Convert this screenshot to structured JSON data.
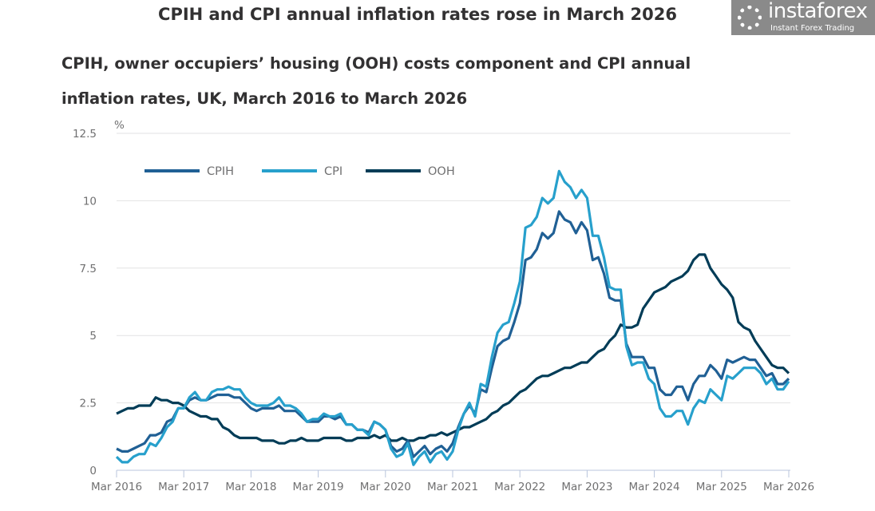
{
  "chart_data": {
    "type": "line",
    "title": "CPIH and CPI annual inflation rates rose in March 2026",
    "subtitle": "CPIH, owner occupiers’ housing (OOH) costs component and CPI annual inflation rates, UK, March 2016 to March 2026",
    "ylabel": "%",
    "ylim": [
      0,
      12.5
    ],
    "yticks": [
      "0",
      "2.5",
      "5",
      "7.5",
      "10",
      "12.5"
    ],
    "ytick_values": [
      0,
      2.5,
      5,
      7.5,
      10,
      12.5
    ],
    "xticks": [
      "Mar 2016",
      "Mar 2017",
      "Mar 2018",
      "Mar 2019",
      "Mar 2020",
      "Mar 2021",
      "Mar 2022",
      "Mar 2023",
      "Mar 2024",
      "Mar 2025",
      "Mar 2026"
    ],
    "x_start": "Mar 2016",
    "x_frequency": "monthly",
    "grid": true,
    "legend_position": "top-left",
    "series": [
      {
        "name": "CPIH",
        "color": "#206095",
        "values": [
          0.8,
          0.7,
          0.7,
          0.8,
          0.9,
          1.0,
          1.3,
          1.3,
          1.4,
          1.8,
          1.9,
          2.3,
          2.3,
          2.6,
          2.7,
          2.6,
          2.6,
          2.7,
          2.8,
          2.8,
          2.8,
          2.7,
          2.7,
          2.5,
          2.3,
          2.2,
          2.3,
          2.3,
          2.3,
          2.4,
          2.2,
          2.2,
          2.2,
          2.0,
          1.8,
          1.8,
          1.8,
          2.0,
          2.0,
          1.9,
          2.0,
          1.7,
          1.7,
          1.5,
          1.5,
          1.4,
          1.8,
          1.7,
          1.5,
          0.9,
          0.7,
          0.8,
          1.1,
          0.5,
          0.7,
          0.9,
          0.6,
          0.8,
          0.9,
          0.7,
          1.0,
          1.6,
          2.1,
          2.4,
          2.1,
          3.0,
          2.9,
          3.8,
          4.6,
          4.8,
          4.9,
          5.5,
          6.2,
          7.8,
          7.9,
          8.2,
          8.8,
          8.6,
          8.8,
          9.6,
          9.3,
          9.2,
          8.8,
          9.2,
          8.9,
          7.8,
          7.9,
          7.3,
          6.4,
          6.3,
          6.3,
          4.7,
          4.2,
          4.2,
          4.2,
          3.8,
          3.8,
          3.0,
          2.8,
          2.8,
          3.1,
          3.1,
          2.6,
          3.2,
          3.5,
          3.5,
          3.9,
          3.7,
          3.4,
          4.1,
          4.0,
          4.1,
          4.2,
          4.1,
          4.1,
          3.8,
          3.5,
          3.6,
          3.2,
          3.2,
          3.4
        ]
      },
      {
        "name": "CPI",
        "color": "#27a0cc",
        "values": [
          0.5,
          0.3,
          0.3,
          0.5,
          0.6,
          0.6,
          1.0,
          0.9,
          1.2,
          1.6,
          1.8,
          2.3,
          2.3,
          2.7,
          2.9,
          2.6,
          2.6,
          2.9,
          3.0,
          3.0,
          3.1,
          3.0,
          3.0,
          2.7,
          2.5,
          2.4,
          2.4,
          2.4,
          2.5,
          2.7,
          2.4,
          2.4,
          2.3,
          2.1,
          1.8,
          1.9,
          1.9,
          2.1,
          2.0,
          2.0,
          2.1,
          1.7,
          1.7,
          1.5,
          1.5,
          1.3,
          1.8,
          1.7,
          1.5,
          0.8,
          0.5,
          0.6,
          1.0,
          0.2,
          0.5,
          0.7,
          0.3,
          0.6,
          0.7,
          0.4,
          0.7,
          1.5,
          2.1,
          2.5,
          2.0,
          3.2,
          3.1,
          4.2,
          5.1,
          5.4,
          5.5,
          6.2,
          7.0,
          9.0,
          9.1,
          9.4,
          10.1,
          9.9,
          10.1,
          11.1,
          10.7,
          10.5,
          10.1,
          10.4,
          10.1,
          8.7,
          8.7,
          7.9,
          6.8,
          6.7,
          6.7,
          4.6,
          3.9,
          4.0,
          4.0,
          3.4,
          3.2,
          2.3,
          2.0,
          2.0,
          2.2,
          2.2,
          1.7,
          2.3,
          2.6,
          2.5,
          3.0,
          2.8,
          2.6,
          3.5,
          3.4,
          3.6,
          3.8,
          3.8,
          3.8,
          3.6,
          3.2,
          3.4,
          3.0,
          3.0,
          3.3
        ]
      },
      {
        "name": "OOH",
        "color": "#003c57",
        "values": [
          2.1,
          2.2,
          2.3,
          2.3,
          2.4,
          2.4,
          2.4,
          2.7,
          2.6,
          2.6,
          2.5,
          2.5,
          2.4,
          2.2,
          2.1,
          2.0,
          2.0,
          1.9,
          1.9,
          1.6,
          1.5,
          1.3,
          1.2,
          1.2,
          1.2,
          1.2,
          1.1,
          1.1,
          1.1,
          1.0,
          1.0,
          1.1,
          1.1,
          1.2,
          1.1,
          1.1,
          1.1,
          1.2,
          1.2,
          1.2,
          1.2,
          1.1,
          1.1,
          1.2,
          1.2,
          1.2,
          1.3,
          1.2,
          1.3,
          1.1,
          1.1,
          1.2,
          1.1,
          1.1,
          1.2,
          1.2,
          1.3,
          1.3,
          1.4,
          1.3,
          1.4,
          1.5,
          1.6,
          1.6,
          1.7,
          1.8,
          1.9,
          2.1,
          2.2,
          2.4,
          2.5,
          2.7,
          2.9,
          3.0,
          3.2,
          3.4,
          3.5,
          3.5,
          3.6,
          3.7,
          3.8,
          3.8,
          3.9,
          4.0,
          4.0,
          4.2,
          4.4,
          4.5,
          4.8,
          5.0,
          5.4,
          5.3,
          5.3,
          5.4,
          6.0,
          6.3,
          6.6,
          6.7,
          6.8,
          7.0,
          7.1,
          7.2,
          7.4,
          7.8,
          8.0,
          8.0,
          7.5,
          7.2,
          6.9,
          6.7,
          6.4,
          5.5,
          5.3,
          5.2,
          4.8,
          4.5,
          4.2,
          3.9,
          3.8,
          3.8,
          3.6
        ]
      }
    ]
  },
  "watermark": {
    "brand": "instaforex",
    "tagline": "Instant Forex Trading"
  }
}
